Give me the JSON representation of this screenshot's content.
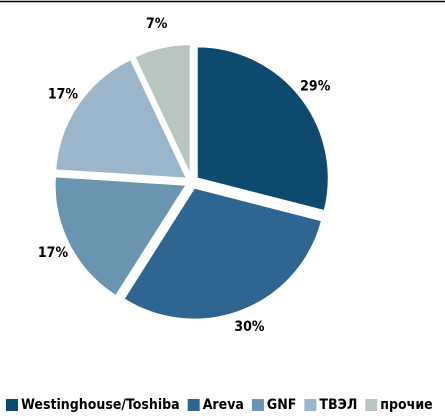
{
  "chart_data": {
    "type": "pie",
    "categories": [
      "Westinghouse/Toshiba",
      "Areva",
      "GNF",
      "ТВЭЛ",
      "прочие"
    ],
    "values": [
      29,
      30,
      17,
      17,
      7
    ],
    "value_labels": [
      "29%",
      "30%",
      "17%",
      "17%",
      "7%"
    ],
    "colors": [
      "#0d4a6e",
      "#2f6691",
      "#6a95b0",
      "#9bb6ca",
      "#b9c6c0"
    ],
    "legend": "bottom"
  }
}
